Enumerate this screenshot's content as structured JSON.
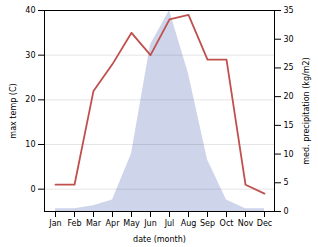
{
  "chart_data": {
    "type": "line",
    "xlabel": "date (month)",
    "ylabel": "max temp (C)",
    "y2label": "med. precipitation (kg/m2)",
    "categories": [
      "Jan",
      "Feb",
      "Mar",
      "Apr",
      "May",
      "Jun",
      "Jul",
      "Aug",
      "Sep",
      "Oct",
      "Nov",
      "Dec"
    ],
    "series": [
      {
        "type": "area",
        "axis": "y2",
        "color": "#c5cee8",
        "values": [
          0.5,
          0.5,
          1.0,
          2.0,
          10.0,
          29.0,
          35.0,
          24.0,
          9.0,
          2.0,
          0.5,
          0.5
        ]
      },
      {
        "type": "line",
        "color": "#c0504d",
        "values": [
          1.0,
          1.0,
          22.0,
          28.0,
          35.0,
          30.0,
          38.0,
          39.0,
          29.0,
          29.0,
          1.0,
          -1.0
        ]
      }
    ],
    "ylim": [
      -5,
      40
    ],
    "yticks": [
      0,
      10,
      20,
      30,
      40
    ],
    "y2lim": [
      0,
      35
    ],
    "y2ticks": [
      0,
      5,
      10,
      15,
      20,
      25,
      30,
      35
    ],
    "grid": true
  }
}
